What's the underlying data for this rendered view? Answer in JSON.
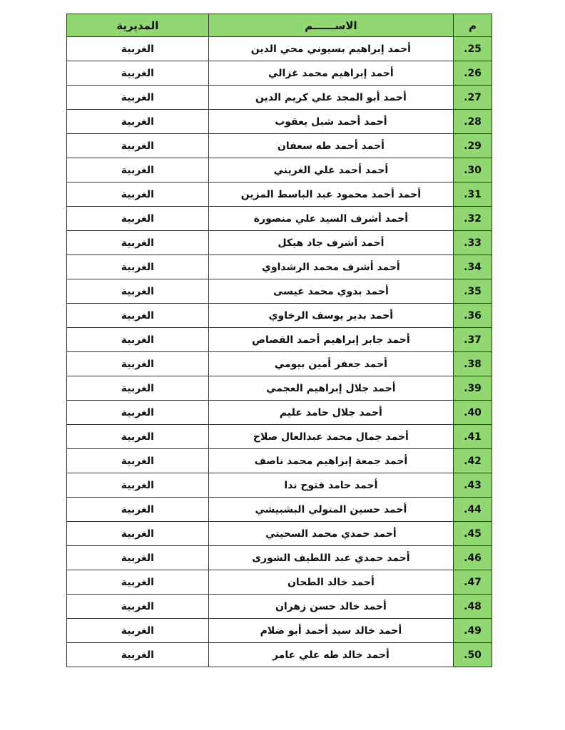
{
  "table": {
    "headers": {
      "number": "م",
      "name": "الاســــــم",
      "directorate": "المديرية"
    },
    "colors": {
      "header_bg": "#92d872",
      "number_col_bg": "#92d872"
    },
    "rows": [
      {
        "number": ".25",
        "name": "أحمد إبراهيم بسيوني محي الدين",
        "directorate": "الغربية"
      },
      {
        "number": ".26",
        "name": "أحمد إبراهيم محمد غزالي",
        "directorate": "الغربية"
      },
      {
        "number": ".27",
        "name": "أحمد أبو المجد علي كريم الدين",
        "directorate": "الغربية"
      },
      {
        "number": ".28",
        "name": "أحمد أحمد شبل يعقوب",
        "directorate": "الغربية"
      },
      {
        "number": ".29",
        "name": "أحمد أحمد طه سعفان",
        "directorate": "الغربية"
      },
      {
        "number": ".30",
        "name": "أحمد أحمد علي الغريني",
        "directorate": "الغربية"
      },
      {
        "number": ".31",
        "name": "أحمد أحمد محمود عبد الباسط المزين",
        "directorate": "الغربية"
      },
      {
        "number": ".32",
        "name": "أحمد أشرف السيد علي منصورة",
        "directorate": "الغربية"
      },
      {
        "number": ".33",
        "name": "أحمد أشرف جاد هيكل",
        "directorate": "الغربية"
      },
      {
        "number": ".34",
        "name": "أحمد أشرف محمد الرشداوي",
        "directorate": "الغربية"
      },
      {
        "number": ".35",
        "name": "أحمد بدوي محمد عيسى",
        "directorate": "الغربية"
      },
      {
        "number": ".36",
        "name": "أحمد بدير يوسف الرخاوي",
        "directorate": "الغربية"
      },
      {
        "number": ".37",
        "name": "أحمد جابر إبراهيم أحمد القصاص",
        "directorate": "الغربية"
      },
      {
        "number": ".38",
        "name": "أحمد جعفر أمين بيومي",
        "directorate": "الغربية"
      },
      {
        "number": ".39",
        "name": "أحمد جلال إبراهيم العجمي",
        "directorate": "الغربية"
      },
      {
        "number": ".40",
        "name": "أحمد جلال حامد عليم",
        "directorate": "الغربية"
      },
      {
        "number": ".41",
        "name": "أحمد جمال محمد عبدالعال صلاح",
        "directorate": "الغربية"
      },
      {
        "number": ".42",
        "name": "أحمد جمعة إبراهيم محمد ناصف",
        "directorate": "الغربية"
      },
      {
        "number": ".43",
        "name": "أحمد حامد فتوح ندا",
        "directorate": "الغربية"
      },
      {
        "number": ".44",
        "name": "أحمد حسين المتولي البشبيشي",
        "directorate": "الغربية"
      },
      {
        "number": ".45",
        "name": "أحمد حمدي محمد السحيتي",
        "directorate": "الغربية"
      },
      {
        "number": ".46",
        "name": "أحمد حمدي عبد اللطيف الشورى",
        "directorate": "الغربية"
      },
      {
        "number": ".47",
        "name": "أحمد خالد الطحان",
        "directorate": "الغربية"
      },
      {
        "number": ".48",
        "name": "أحمد خالد حسن زهران",
        "directorate": "الغربية"
      },
      {
        "number": ".49",
        "name": "أحمد خالد سيد أحمد أبو ضلام",
        "directorate": "الغربية"
      },
      {
        "number": ".50",
        "name": "أحمد خالد طه علي عامر",
        "directorate": "الغربية"
      }
    ]
  }
}
